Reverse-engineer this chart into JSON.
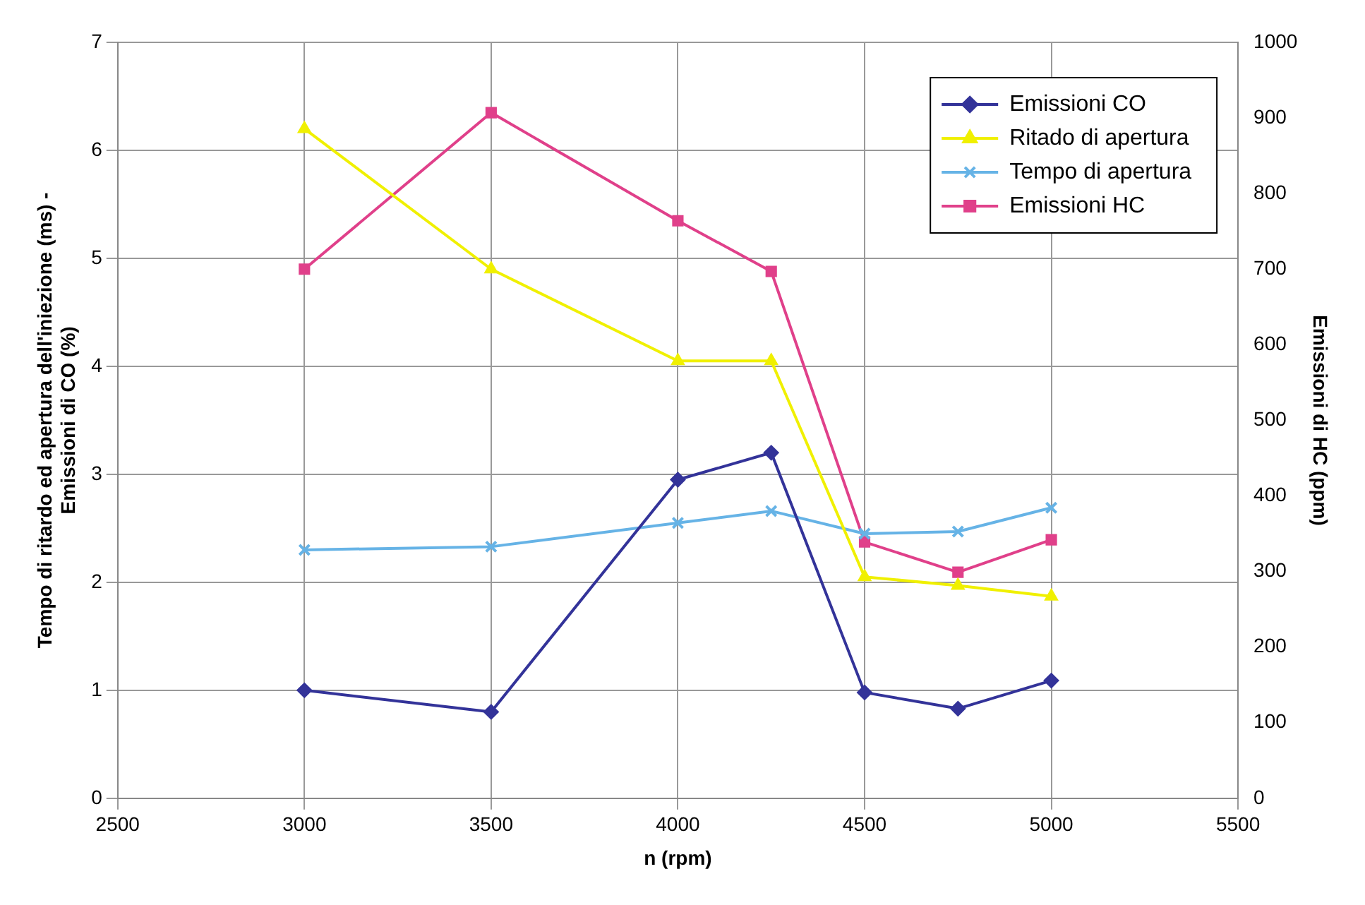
{
  "chart_data": {
    "type": "line",
    "xlabel": "n (rpm)",
    "ylabel": "Tempo di ritardo ed apertura dell'iniezione (ms) -\nEmissioni di CO (%)",
    "y2label": "Emissioni di HC (ppm)",
    "x": [
      3000,
      3500,
      4000,
      4250,
      4500,
      4750,
      5000
    ],
    "xlim": [
      2500,
      5500
    ],
    "xticks": [
      2500,
      3000,
      3500,
      4000,
      4500,
      5000,
      5500
    ],
    "ylim": [
      0,
      7
    ],
    "yticks": [
      0,
      1,
      2,
      3,
      4,
      5,
      6,
      7
    ],
    "y2lim": [
      0,
      1000
    ],
    "y2ticks": [
      0,
      100,
      200,
      300,
      400,
      500,
      600,
      700,
      800,
      900,
      1000
    ],
    "grid": true,
    "legend": "top right",
    "line_style": "solid",
    "series": [
      {
        "name": "Emissioni CO",
        "color": "#333399",
        "marker": "diamond",
        "values": [
          1.0,
          0.8,
          2.95,
          3.2,
          0.98,
          0.83,
          1.09
        ]
      },
      {
        "name": "Ritado di apertura",
        "color": "#f0f000",
        "marker": "triangle",
        "values": [
          6.2,
          4.9,
          4.05,
          4.05,
          2.05,
          1.97,
          1.87
        ]
      },
      {
        "name": "Tempo di apertura",
        "color": "#66b3e6",
        "marker": "cross",
        "values": [
          2.3,
          2.33,
          2.55,
          2.66,
          2.45,
          2.47,
          2.69
        ]
      },
      {
        "name": "Emissioni HC",
        "color": "#e0408a",
        "marker": "square",
        "axis": "y2",
        "values": [
          700,
          907,
          764,
          697,
          339,
          299,
          342
        ]
      }
    ]
  }
}
